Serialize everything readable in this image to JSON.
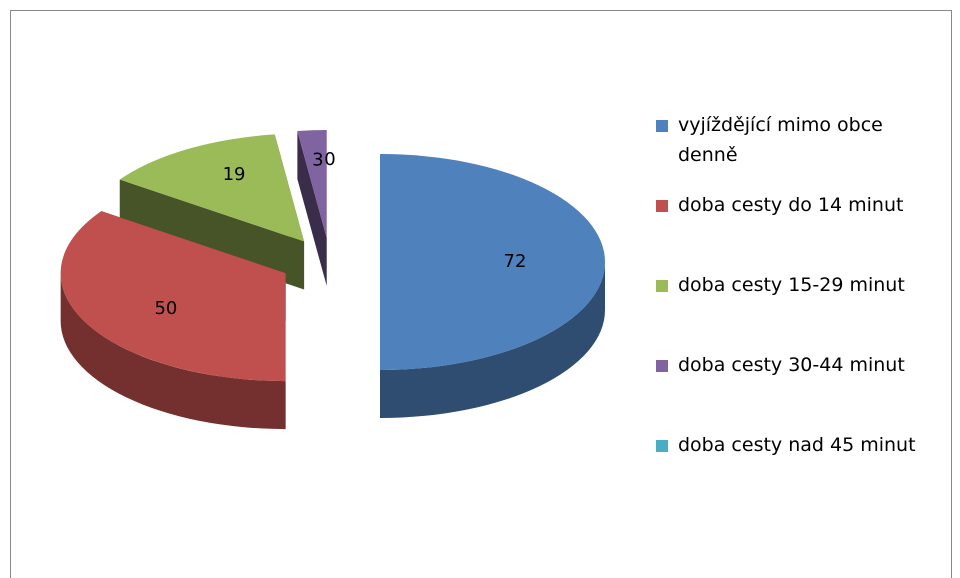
{
  "chart_data": {
    "type": "pie3d",
    "categories": [
      "vyjíždějící mimo obce denně",
      "doba cesty do 14 minut",
      "doba cesty 15-29 minut",
      "doba cesty 30-44 minut",
      "doba cesty nad 45 minut"
    ],
    "values": [
      72,
      50,
      19,
      3,
      0
    ],
    "colors": [
      "#4f81bd",
      "#c0504d",
      "#9bbb59",
      "#8064a2",
      "#4bacc6"
    ],
    "legend": "right"
  }
}
